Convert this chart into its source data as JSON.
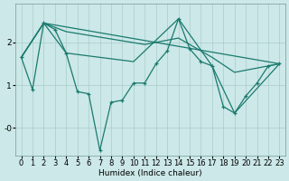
{
  "xlabel": "Humidex (Indice chaleur)",
  "background_color": "#cce8e8",
  "grid_color": "#aacccc",
  "line_color": "#1a7a6e",
  "xlim": [
    -0.5,
    23.5
  ],
  "ylim": [
    -0.65,
    2.9
  ],
  "yticks": [
    0.0,
    1.0,
    2.0
  ],
  "ytick_labels": [
    "-0",
    "1",
    "2"
  ],
  "xticks": [
    0,
    1,
    2,
    3,
    4,
    5,
    6,
    7,
    8,
    9,
    10,
    11,
    12,
    13,
    14,
    15,
    16,
    17,
    18,
    19,
    20,
    21,
    22,
    23
  ],
  "font_size": 6.5,
  "zigzag_x": [
    0,
    1,
    2,
    3,
    4,
    5,
    6,
    7,
    8,
    9,
    10,
    11,
    12,
    13,
    14,
    15,
    16,
    17,
    18,
    19,
    20,
    21,
    22,
    23
  ],
  "zigzag_y": [
    1.65,
    0.9,
    2.45,
    2.3,
    1.75,
    0.85,
    0.8,
    -0.52,
    0.6,
    0.65,
    1.05,
    1.05,
    1.5,
    1.8,
    2.55,
    1.85,
    1.55,
    1.45,
    0.5,
    0.35,
    0.75,
    1.05,
    1.45,
    1.5
  ],
  "line1_x": [
    0,
    2,
    23
  ],
  "line1_y": [
    1.65,
    2.45,
    1.5
  ],
  "line2_x": [
    0,
    2,
    4,
    11,
    14,
    17,
    19,
    23
  ],
  "line2_y": [
    1.65,
    2.45,
    2.25,
    1.95,
    2.1,
    1.65,
    1.3,
    1.5
  ],
  "line3_x": [
    0,
    2,
    4,
    10,
    14,
    17,
    19,
    23
  ],
  "line3_y": [
    1.65,
    2.45,
    1.75,
    1.55,
    2.55,
    1.45,
    0.35,
    1.5
  ]
}
